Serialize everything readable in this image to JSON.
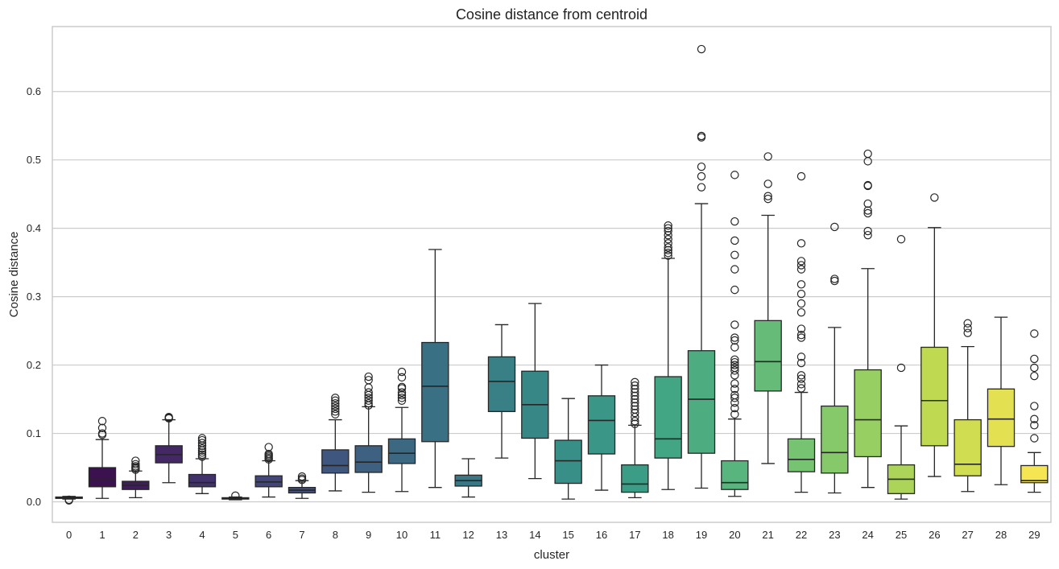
{
  "chart_data": {
    "type": "boxplot",
    "title": "Cosine distance from centroid",
    "xlabel": "cluster",
    "ylabel": "Cosine distance",
    "ylim": [
      -0.03,
      0.695
    ],
    "yticks": [
      0.0,
      0.1,
      0.2,
      0.3,
      0.4,
      0.5,
      0.6
    ],
    "ytick_labels": [
      "0.0",
      "0.1",
      "0.2",
      "0.3",
      "0.4",
      "0.5",
      "0.6"
    ],
    "grid": "horizontal",
    "palette": "viridis",
    "categories": [
      "0",
      "1",
      "2",
      "3",
      "4",
      "5",
      "6",
      "7",
      "8",
      "9",
      "10",
      "11",
      "12",
      "13",
      "14",
      "15",
      "16",
      "17",
      "18",
      "19",
      "20",
      "21",
      "22",
      "23",
      "24",
      "25",
      "26",
      "27",
      "28",
      "29"
    ],
    "colors": [
      "#440154",
      "#471164",
      "#482173",
      "#46307e",
      "#423f85",
      "#3d4d8a",
      "#375a8c",
      "#32668e",
      "#2d718e",
      "#297b8e",
      "#25858e",
      "#21908d",
      "#1f9a8a",
      "#20a486",
      "#28ae80",
      "#35b779",
      "#48c16e",
      "#5ec962",
      "#75d054",
      "#8fd744",
      "#a8db34",
      "#c2df23",
      "#dde318",
      "#fde725",
      "#3a548c",
      "#34618d",
      "#2e6d8e",
      "#297a8e",
      "#23888e",
      "#1f958b"
    ],
    "boxes": [
      {
        "cluster": "0",
        "whislo": 0.004,
        "q1": 0.005,
        "med": 0.006,
        "q3": 0.007,
        "whishi": 0.008,
        "fliers": [
          0.002,
          0.003
        ]
      },
      {
        "cluster": "1",
        "whislo": 0.005,
        "q1": 0.022,
        "med": 0.033,
        "q3": 0.05,
        "whishi": 0.091,
        "fliers": [
          0.098,
          0.1,
          0.108,
          0.118
        ]
      },
      {
        "cluster": "2",
        "whislo": 0.006,
        "q1": 0.018,
        "med": 0.024,
        "q3": 0.03,
        "whishi": 0.045,
        "fliers": [
          0.047,
          0.049,
          0.05,
          0.052,
          0.055,
          0.06
        ]
      },
      {
        "cluster": "3",
        "whislo": 0.028,
        "q1": 0.057,
        "med": 0.069,
        "q3": 0.082,
        "whishi": 0.12,
        "fliers": [
          0.122,
          0.123,
          0.124
        ]
      },
      {
        "cluster": "4",
        "whislo": 0.012,
        "q1": 0.022,
        "med": 0.028,
        "q3": 0.04,
        "whishi": 0.063,
        "fliers": [
          0.066,
          0.069,
          0.072,
          0.075,
          0.078,
          0.082,
          0.086,
          0.09,
          0.093
        ]
      },
      {
        "cluster": "5",
        "whislo": 0.003,
        "q1": 0.004,
        "med": 0.005,
        "q3": 0.006,
        "whishi": 0.007,
        "fliers": [
          0.009
        ]
      },
      {
        "cluster": "6",
        "whislo": 0.007,
        "q1": 0.022,
        "med": 0.029,
        "q3": 0.038,
        "whishi": 0.06,
        "fliers": [
          0.062,
          0.064,
          0.066,
          0.068,
          0.07,
          0.08
        ]
      },
      {
        "cluster": "7",
        "whislo": 0.005,
        "q1": 0.013,
        "med": 0.017,
        "q3": 0.021,
        "whishi": 0.031,
        "fliers": [
          0.032,
          0.034,
          0.037
        ]
      },
      {
        "cluster": "8",
        "whislo": 0.016,
        "q1": 0.042,
        "med": 0.053,
        "q3": 0.076,
        "whishi": 0.12,
        "fliers": [
          0.128,
          0.132,
          0.136,
          0.14,
          0.144,
          0.148,
          0.152
        ]
      },
      {
        "cluster": "9",
        "whislo": 0.014,
        "q1": 0.043,
        "med": 0.058,
        "q3": 0.082,
        "whishi": 0.139,
        "fliers": [
          0.141,
          0.144,
          0.148,
          0.152,
          0.156,
          0.16,
          0.167,
          0.178,
          0.183
        ]
      },
      {
        "cluster": "10",
        "whislo": 0.015,
        "q1": 0.056,
        "med": 0.071,
        "q3": 0.092,
        "whishi": 0.138,
        "fliers": [
          0.148,
          0.152,
          0.156,
          0.16,
          0.166,
          0.168,
          0.182,
          0.19
        ]
      },
      {
        "cluster": "11",
        "whislo": 0.021,
        "q1": 0.088,
        "med": 0.169,
        "q3": 0.233,
        "whishi": 0.369,
        "fliers": []
      },
      {
        "cluster": "12",
        "whislo": 0.007,
        "q1": 0.023,
        "med": 0.031,
        "q3": 0.039,
        "whishi": 0.063,
        "fliers": []
      },
      {
        "cluster": "13",
        "whislo": 0.064,
        "q1": 0.132,
        "med": 0.176,
        "q3": 0.212,
        "whishi": 0.259,
        "fliers": []
      },
      {
        "cluster": "14",
        "whislo": 0.034,
        "q1": 0.093,
        "med": 0.142,
        "q3": 0.191,
        "whishi": 0.29,
        "fliers": []
      },
      {
        "cluster": "15",
        "whislo": 0.004,
        "q1": 0.027,
        "med": 0.06,
        "q3": 0.09,
        "whishi": 0.151,
        "fliers": []
      },
      {
        "cluster": "16",
        "whislo": 0.017,
        "q1": 0.07,
        "med": 0.119,
        "q3": 0.155,
        "whishi": 0.2,
        "fliers": []
      },
      {
        "cluster": "17",
        "whislo": 0.006,
        "q1": 0.014,
        "med": 0.026,
        "q3": 0.054,
        "whishi": 0.112,
        "fliers": [
          0.114,
          0.118,
          0.124,
          0.13,
          0.135,
          0.14,
          0.145,
          0.15,
          0.155,
          0.16,
          0.165,
          0.17,
          0.175
        ]
      },
      {
        "cluster": "18",
        "whislo": 0.018,
        "q1": 0.064,
        "med": 0.092,
        "q3": 0.183,
        "whishi": 0.356,
        "fliers": [
          0.36,
          0.364,
          0.368,
          0.372,
          0.378,
          0.384,
          0.39,
          0.396,
          0.4,
          0.404
        ]
      },
      {
        "cluster": "19",
        "whislo": 0.02,
        "q1": 0.071,
        "med": 0.15,
        "q3": 0.221,
        "whishi": 0.436,
        "fliers": [
          0.46,
          0.476,
          0.49,
          0.533,
          0.535,
          0.662
        ]
      },
      {
        "cluster": "20",
        "whislo": 0.008,
        "q1": 0.018,
        "med": 0.028,
        "q3": 0.06,
        "whishi": 0.121,
        "fliers": [
          0.128,
          0.137,
          0.145,
          0.152,
          0.156,
          0.165,
          0.173,
          0.185,
          0.192,
          0.196,
          0.2,
          0.204,
          0.208,
          0.226,
          0.236,
          0.24,
          0.259,
          0.31,
          0.34,
          0.361,
          0.382,
          0.41,
          0.478
        ]
      },
      {
        "cluster": "21",
        "whislo": 0.056,
        "q1": 0.162,
        "med": 0.205,
        "q3": 0.265,
        "whishi": 0.419,
        "fliers": [
          0.443,
          0.447,
          0.465,
          0.505
        ]
      },
      {
        "cluster": "22",
        "whislo": 0.014,
        "q1": 0.044,
        "med": 0.062,
        "q3": 0.092,
        "whishi": 0.16,
        "fliers": [
          0.166,
          0.172,
          0.18,
          0.185,
          0.203,
          0.212,
          0.24,
          0.244,
          0.253,
          0.277,
          0.29,
          0.304,
          0.318,
          0.34,
          0.346,
          0.352,
          0.378,
          0.476
        ]
      },
      {
        "cluster": "23",
        "whislo": 0.013,
        "q1": 0.042,
        "med": 0.072,
        "q3": 0.14,
        "whishi": 0.255,
        "fliers": [
          0.323,
          0.326,
          0.402
        ]
      },
      {
        "cluster": "24",
        "whislo": 0.021,
        "q1": 0.066,
        "med": 0.12,
        "q3": 0.193,
        "whishi": 0.341,
        "fliers": [
          0.39,
          0.396,
          0.422,
          0.426,
          0.436,
          0.462,
          0.463,
          0.498,
          0.509
        ]
      },
      {
        "cluster": "25",
        "whislo": 0.004,
        "q1": 0.012,
        "med": 0.033,
        "q3": 0.054,
        "whishi": 0.111,
        "fliers": [
          0.196,
          0.384
        ]
      },
      {
        "cluster": "26",
        "whislo": 0.037,
        "q1": 0.082,
        "med": 0.148,
        "q3": 0.226,
        "whishi": 0.401,
        "fliers": [
          0.445
        ]
      },
      {
        "cluster": "27",
        "whislo": 0.015,
        "q1": 0.038,
        "med": 0.055,
        "q3": 0.12,
        "whishi": 0.227,
        "fliers": [
          0.247,
          0.254,
          0.261
        ]
      },
      {
        "cluster": "28",
        "whislo": 0.025,
        "q1": 0.081,
        "med": 0.121,
        "q3": 0.165,
        "whishi": 0.27,
        "fliers": []
      },
      {
        "cluster": "29",
        "whislo": 0.014,
        "q1": 0.028,
        "med": 0.031,
        "q3": 0.053,
        "whishi": 0.072,
        "fliers": [
          0.093,
          0.112,
          0.121,
          0.14,
          0.184,
          0.196,
          0.209,
          0.246
        ]
      }
    ]
  }
}
